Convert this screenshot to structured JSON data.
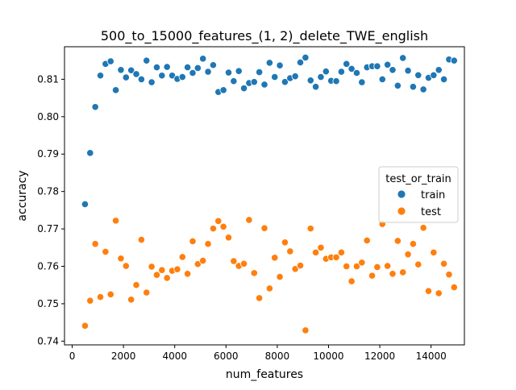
{
  "chart_data": {
    "type": "scatter",
    "title": "500_to_15000_features_(1, 2)_delete_TWE_english",
    "xlabel": "num_features",
    "ylabel": "accuracy",
    "xlim": [
      -300,
      15300
    ],
    "ylim": [
      0.739,
      0.8187
    ],
    "xticks": [
      0,
      2000,
      4000,
      6000,
      8000,
      10000,
      12000,
      14000
    ],
    "xtick_labels": [
      "0",
      "2000",
      "4000",
      "6000",
      "8000",
      "10000",
      "12000",
      "14000"
    ],
    "yticks": [
      0.74,
      0.75,
      0.76,
      0.77,
      0.78,
      0.79,
      0.8,
      0.81
    ],
    "ytick_labels": [
      "0.74",
      "0.75",
      "0.76",
      "0.77",
      "0.78",
      "0.79",
      "0.80",
      "0.81"
    ],
    "legend": {
      "title": "test_or_train",
      "placement": "center-right",
      "entries": [
        "train",
        "test"
      ]
    },
    "x": [
      500,
      700,
      900,
      1100,
      1300,
      1500,
      1700,
      1900,
      2100,
      2300,
      2500,
      2700,
      2900,
      3100,
      3300,
      3500,
      3700,
      3900,
      4100,
      4300,
      4500,
      4700,
      4900,
      5100,
      5300,
      5500,
      5700,
      5900,
      6100,
      6300,
      6500,
      6700,
      6900,
      7100,
      7300,
      7500,
      7700,
      7900,
      8100,
      8300,
      8500,
      8700,
      8900,
      9100,
      9300,
      9500,
      9700,
      9900,
      10100,
      10300,
      10500,
      10700,
      10900,
      11100,
      11300,
      11500,
      11700,
      11900,
      12100,
      12300,
      12500,
      12700,
      12900,
      13100,
      13300,
      13500,
      13700,
      13900,
      14100,
      14300,
      14500,
      14700,
      14900
    ],
    "series": [
      {
        "name": "train",
        "color": "#1f77b4",
        "values": [
          0.7766,
          0.7903,
          0.8026,
          0.811,
          0.8141,
          0.8148,
          0.8071,
          0.8125,
          0.8105,
          0.8124,
          0.8114,
          0.81,
          0.815,
          0.8092,
          0.8132,
          0.811,
          0.8133,
          0.811,
          0.8101,
          0.8106,
          0.8132,
          0.8117,
          0.813,
          0.8155,
          0.812,
          0.8138,
          0.8066,
          0.8071,
          0.8118,
          0.8095,
          0.8122,
          0.8076,
          0.809,
          0.8093,
          0.8119,
          0.8086,
          0.8144,
          0.8106,
          0.8137,
          0.8093,
          0.8103,
          0.8108,
          0.8145,
          0.8158,
          0.8097,
          0.808,
          0.8106,
          0.8121,
          0.8096,
          0.8095,
          0.812,
          0.8141,
          0.8128,
          0.8117,
          0.8092,
          0.8132,
          0.8135,
          0.8135,
          0.81,
          0.8139,
          0.8125,
          0.8083,
          0.8157,
          0.8123,
          0.808,
          0.8111,
          0.8073,
          0.8104,
          0.8111,
          0.8125,
          0.81,
          0.8153,
          0.815
        ]
      },
      {
        "name": "test",
        "color": "#ff7f0e",
        "values": [
          0.7441,
          0.7508,
          0.766,
          0.7518,
          0.7639,
          0.7525,
          0.7722,
          0.7621,
          0.7601,
          0.7511,
          0.755,
          0.7671,
          0.753,
          0.7599,
          0.7577,
          0.759,
          0.7569,
          0.7588,
          0.7592,
          0.7625,
          0.758,
          0.7667,
          0.7606,
          0.7615,
          0.766,
          0.7701,
          0.7721,
          0.7706,
          0.7677,
          0.7614,
          0.7601,
          0.7607,
          0.7724,
          0.7582,
          0.7515,
          0.7702,
          0.7541,
          0.7623,
          0.7572,
          0.7664,
          0.764,
          0.7593,
          0.7602,
          0.7429,
          0.7701,
          0.7637,
          0.765,
          0.762,
          0.7624,
          0.7624,
          0.7637,
          0.76,
          0.756,
          0.76,
          0.761,
          0.7669,
          0.7575,
          0.7598,
          0.7713,
          0.7601,
          0.758,
          0.7668,
          0.7584,
          0.7632,
          0.766,
          0.7605,
          0.7703,
          0.7534,
          0.7637,
          0.7528,
          0.7607,
          0.7578,
          0.7544
        ]
      }
    ]
  }
}
